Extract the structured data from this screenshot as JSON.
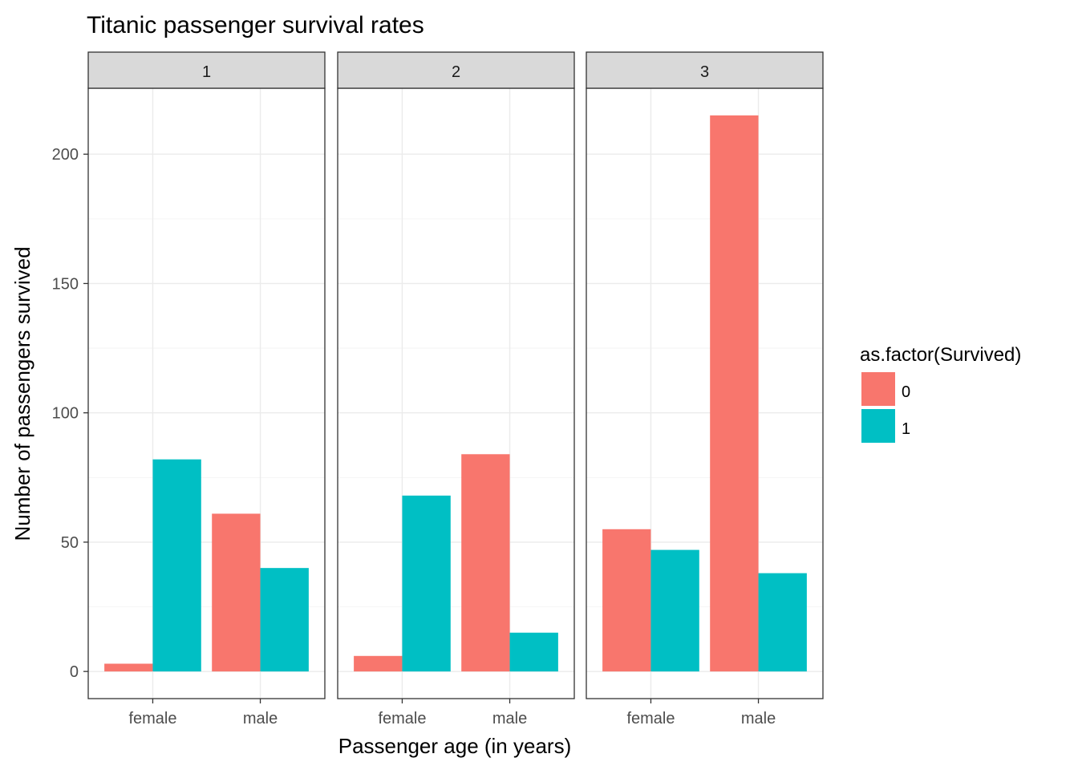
{
  "chart_data": {
    "type": "bar",
    "title": "Titanic passenger survival rates",
    "xlabel": "Passenger age (in years)",
    "ylabel": "Number of passengers survived",
    "ylim": [
      0,
      225
    ],
    "yticks": [
      0,
      50,
      100,
      150,
      200
    ],
    "categories": [
      "female",
      "male"
    ],
    "grid": true,
    "legend": {
      "title": "as.factor(Survived)",
      "position": "right",
      "entries": [
        {
          "label": "0",
          "color": "#F8766D"
        },
        {
          "label": "1",
          "color": "#00BFC4"
        }
      ]
    },
    "facets": [
      {
        "label": "1",
        "series": [
          {
            "name": "0",
            "values": [
              3,
              61
            ]
          },
          {
            "name": "1",
            "values": [
              82,
              40
            ]
          }
        ]
      },
      {
        "label": "2",
        "series": [
          {
            "name": "0",
            "values": [
              6,
              84
            ]
          },
          {
            "name": "1",
            "values": [
              68,
              15
            ]
          }
        ]
      },
      {
        "label": "3",
        "series": [
          {
            "name": "0",
            "values": [
              55,
              215
            ]
          },
          {
            "name": "1",
            "values": [
              47,
              38
            ]
          }
        ]
      }
    ]
  }
}
